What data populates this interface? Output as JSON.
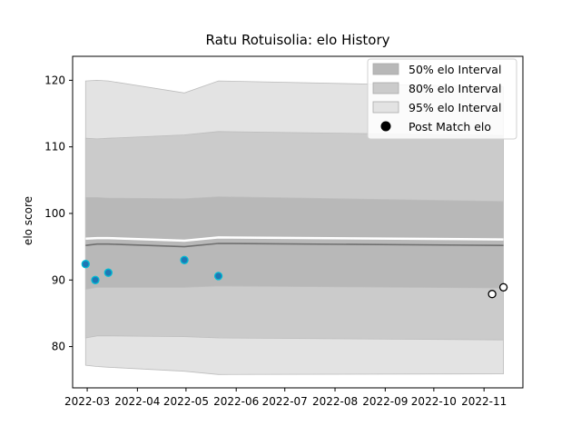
{
  "chart_data": {
    "type": "area",
    "title": "Ratu Rotuisolia: elo History",
    "xlabel": "",
    "ylabel": "elo score",
    "xlim": [
      "2022-02-20",
      "2022-11-25"
    ],
    "ylim": [
      73.8,
      123.6
    ],
    "grid": false,
    "legend_position": "top-right",
    "x_ticks": [
      "2022-03",
      "2022-04",
      "2022-05",
      "2022-06",
      "2022-07",
      "2022-08",
      "2022-09",
      "2022-10",
      "2022-11"
    ],
    "y_ticks": [
      80,
      90,
      100,
      110,
      120
    ],
    "band_dates": [
      "2022-02-28",
      "2022-03-07",
      "2022-03-14",
      "2022-04-30",
      "2022-05-21",
      "2022-11-13"
    ],
    "bands": [
      {
        "name": "95% elo Interval",
        "color": "#e3e3e3",
        "lower": [
          77.2,
          77.0,
          76.9,
          76.3,
          75.8,
          75.9
        ],
        "upper": [
          119.9,
          120.0,
          119.9,
          118.1,
          119.9,
          119.0
        ]
      },
      {
        "name": "80% elo Interval",
        "color": "#cbcbcb",
        "lower": [
          81.3,
          81.6,
          81.6,
          81.5,
          81.3,
          81.0
        ],
        "upper": [
          111.3,
          111.2,
          111.3,
          111.8,
          112.3,
          111.7
        ]
      },
      {
        "name": "50% elo Interval",
        "color": "#b8b8b8",
        "lower": [
          88.6,
          88.9,
          88.9,
          88.9,
          89.1,
          88.8
        ],
        "upper": [
          102.4,
          102.4,
          102.3,
          102.2,
          102.5,
          101.8
        ]
      }
    ],
    "mean_line": {
      "values": [
        95.2,
        95.4,
        95.4,
        95.0,
        95.5,
        95.2
      ],
      "color": "#6f6f6f"
    },
    "white_line": {
      "values": [
        96.2,
        96.3,
        96.3,
        95.9,
        96.4,
        96.1
      ]
    },
    "post_match": {
      "name": "Post Match elo",
      "points": [
        {
          "x": "2022-02-28",
          "y": 92.4,
          "color": "#1f77b4",
          "edge": "#00bcd4"
        },
        {
          "x": "2022-03-06",
          "y": 90.0,
          "color": "#1f77b4",
          "edge": "#00bcd4"
        },
        {
          "x": "2022-03-14",
          "y": 91.1,
          "color": "#1f77b4",
          "edge": "#00bcd4"
        },
        {
          "x": "2022-04-30",
          "y": 93.0,
          "color": "#1f77b4",
          "edge": "#00bcd4"
        },
        {
          "x": "2022-05-21",
          "y": 90.6,
          "color": "#1f77b4",
          "edge": "#00bcd4"
        },
        {
          "x": "2022-11-06",
          "y": 87.9,
          "color": "#ffffff",
          "edge": "#000000"
        },
        {
          "x": "2022-11-13",
          "y": 88.9,
          "color": "#ffffff",
          "edge": "#000000"
        }
      ]
    },
    "legend": [
      {
        "label": "50% elo Interval",
        "type": "patch",
        "color": "#b8b8b8"
      },
      {
        "label": "80% elo Interval",
        "type": "patch",
        "color": "#cbcbcb"
      },
      {
        "label": "95% elo Interval",
        "type": "patch",
        "color": "#e3e3e3"
      },
      {
        "label": "Post Match elo",
        "type": "marker",
        "color": "#000000"
      }
    ]
  }
}
